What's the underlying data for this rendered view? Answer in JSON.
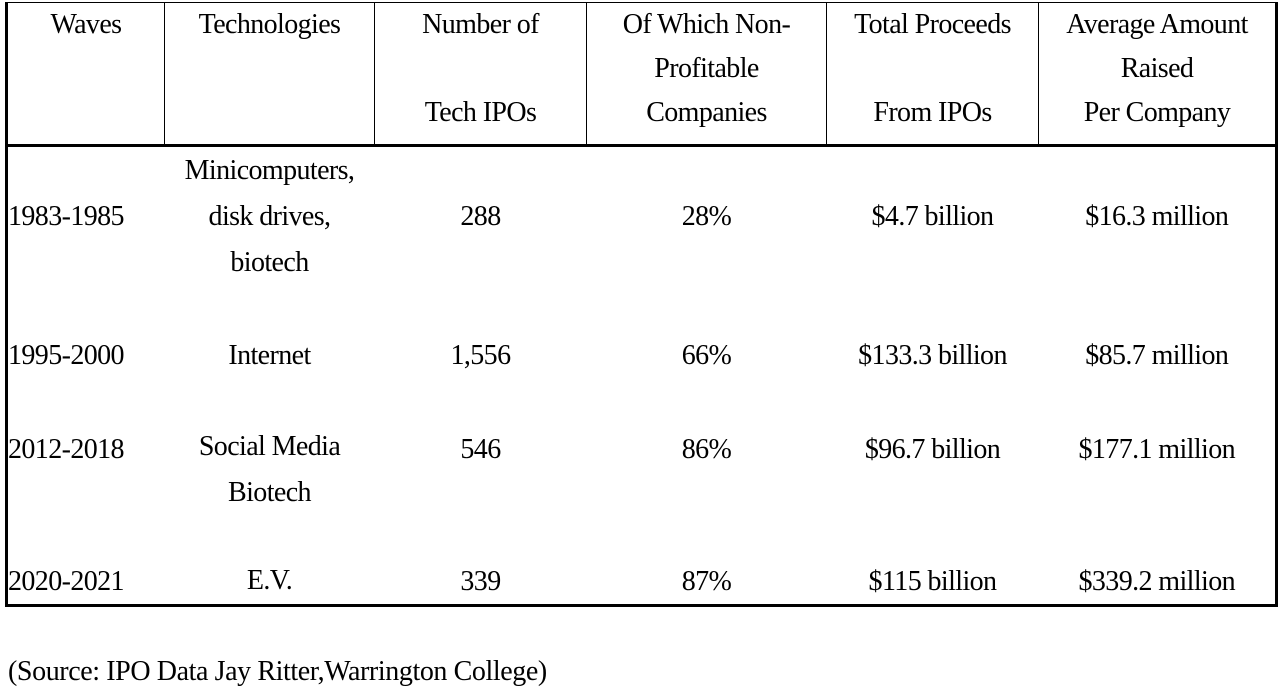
{
  "table": {
    "headers": [
      [
        "Waves"
      ],
      [
        "Technologies"
      ],
      [
        "Number of",
        "",
        "Tech IPOs"
      ],
      [
        "Of Which Non-",
        "Profitable",
        "Companies"
      ],
      [
        "Total Proceeds",
        "",
        "From IPOs"
      ],
      [
        "Average Amount",
        "Raised",
        "Per Company"
      ]
    ],
    "rows": [
      {
        "wave": "1983-1985",
        "technologies": [
          "Minicomputers,",
          "disk drives,",
          "biotech"
        ],
        "num_ipos": "288",
        "non_profitable": "28%",
        "total_proceeds": "$4.7 billion",
        "avg_raised": "$16.3 million"
      },
      {
        "wave": "1995-2000",
        "technologies": [
          "Internet"
        ],
        "num_ipos": "1,556",
        "non_profitable": "66%",
        "total_proceeds": "$133.3 billion",
        "avg_raised": "$85.7 million"
      },
      {
        "wave": "2012-2018",
        "technologies": [
          "Social Media",
          "Biotech"
        ],
        "num_ipos": "546",
        "non_profitable": "86%",
        "total_proceeds": "$96.7 billion",
        "avg_raised": "$177.1 million"
      },
      {
        "wave": "2020-2021",
        "technologies": [
          "E.V."
        ],
        "num_ipos": "339",
        "non_profitable": "87%",
        "total_proceeds": "$115 billion",
        "avg_raised": "$339.2 million"
      }
    ]
  },
  "source_note": "(Source: IPO Data Jay Ritter,Warrington College)"
}
